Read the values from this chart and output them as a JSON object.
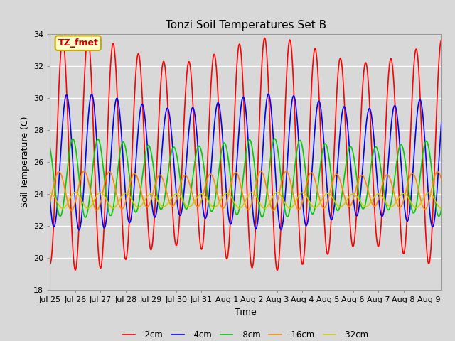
{
  "title": "Tonzi Soil Temperatures Set B",
  "xlabel": "Time",
  "ylabel": "Soil Temperature (C)",
  "ylim": [
    18,
    34
  ],
  "background_color": "#d8d8d8",
  "plot_bg_color": "#d8d8d8",
  "annotation_text": "TZ_fmet",
  "annotation_bg": "#ffffcc",
  "annotation_border": "#ccaa00",
  "annotation_text_color": "#cc0000",
  "x_tick_labels": [
    "Jul 25",
    "Jul 26",
    "Jul 27",
    "Jul 28",
    "Jul 29",
    "Jul 30",
    "Jul 31",
    "Aug 1",
    "Aug 2",
    "Aug 3",
    "Aug 4",
    "Aug 5",
    "Aug 6",
    "Aug 7",
    "Aug 8",
    "Aug 9"
  ],
  "params": [
    {
      "mean": 26.5,
      "amp": 6.5,
      "phase": 0.25,
      "color": "#ff0000",
      "label": "-2cm"
    },
    {
      "mean": 26.0,
      "amp": 3.8,
      "phase": 0.4,
      "color": "#0000ff",
      "label": "-4cm"
    },
    {
      "mean": 25.0,
      "amp": 2.2,
      "phase": 0.65,
      "color": "#00cc00",
      "label": "-8cm"
    },
    {
      "mean": 24.2,
      "amp": 1.1,
      "phase": 1.1,
      "color": "#ff8800",
      "label": "-16cm"
    },
    {
      "mean": 23.6,
      "amp": 0.45,
      "phase": 1.75,
      "color": "#cccc00",
      "label": "-32cm"
    }
  ],
  "n_days": 15.5,
  "n_points": 2000,
  "figwidth": 6.4,
  "figheight": 4.8,
  "dpi": 100
}
